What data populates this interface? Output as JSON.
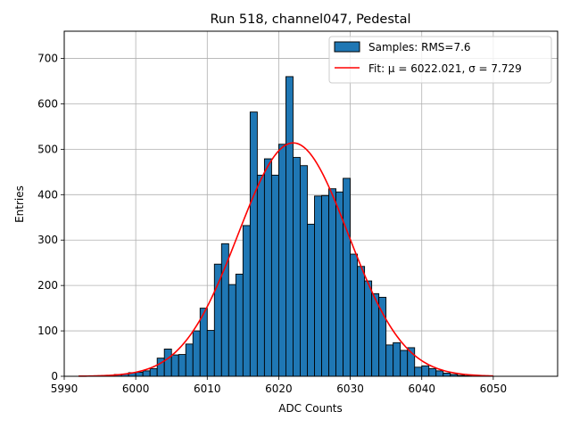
{
  "chart_data": {
    "type": "bar",
    "title": "Run 518, channel047, Pedestal",
    "xlabel": "ADC Counts",
    "ylabel": "Entries",
    "xlim": [
      5990,
      6059
    ],
    "ylim": [
      0,
      760
    ],
    "xticks": [
      5990,
      6000,
      6010,
      6020,
      6030,
      6040,
      6050
    ],
    "yticks": [
      0,
      100,
      200,
      300,
      400,
      500,
      600,
      700
    ],
    "grid": true,
    "legend_position": "top-right",
    "colors": {
      "bars": "#1f77b4",
      "bar_edge": "#000000",
      "fit": "#ff0000",
      "grid": "#b0b0b0"
    },
    "histogram": {
      "name": "Samples: RMS=7.6",
      "bin_width": 1,
      "bin_start": 5992,
      "counts": [
        0,
        0,
        0,
        1,
        2,
        4,
        5,
        8,
        9,
        12,
        17,
        40,
        60,
        47,
        48,
        71,
        100,
        150,
        101,
        247,
        292,
        202,
        225,
        332,
        582,
        443,
        479,
        443,
        511,
        660,
        482,
        464,
        335,
        397,
        398,
        413,
        406,
        436,
        269,
        242,
        210,
        182,
        174,
        69,
        74,
        57,
        63,
        20,
        23,
        17,
        12,
        7,
        4,
        2,
        1,
        0,
        0,
        0,
        0,
        0,
        0,
        0,
        0,
        0
      ]
    },
    "fit": {
      "name": "Fit: μ = 6022.021, σ = 7.729",
      "mu": 6022.021,
      "sigma": 7.729,
      "amplitude": 514,
      "x_range": [
        5992,
        6050
      ]
    }
  }
}
